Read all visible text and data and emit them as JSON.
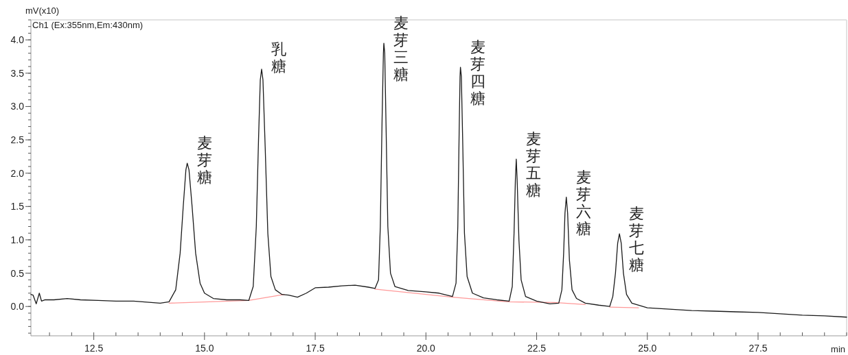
{
  "chart_data": {
    "type": "line",
    "title": "Ch1 (Ex:355nm,Em:430nm)",
    "ylabel": "mV(x10)",
    "xlabel": "min",
    "xlim": [
      11.08,
      29.5
    ],
    "ylim": [
      -0.44,
      4.3
    ],
    "xticks": [
      12.5,
      {
        "value": 15,
        "label": "15.0"
      },
      17.5,
      {
        "value": 20,
        "label": "20.0"
      },
      22.5,
      {
        "value": 25,
        "label": "25.0"
      },
      27.5
    ],
    "yticks": [
      {
        "value": 0,
        "label": "0.0"
      },
      0.5,
      {
        "value": 1,
        "label": "1.0"
      },
      1.5,
      {
        "value": 2,
        "label": "2.0"
      },
      2.5,
      {
        "value": 3,
        "label": "3.0"
      },
      3.5,
      {
        "value": 4,
        "label": "4.0"
      }
    ],
    "grid": false,
    "marker": "none",
    "line_style": "solid",
    "series": [
      {
        "color": "#ff9999",
        "x": [
          14.2,
          16.0,
          16.8
        ],
        "values": [
          0.05,
          0.09,
          0.18
        ]
      },
      {
        "color": "#ff9999",
        "x": [
          18.85,
          20.6,
          21.85,
          22.9,
          23.6
        ],
        "values": [
          0.26,
          0.14,
          0.07,
          0.06,
          0.03
        ]
      },
      {
        "color": "#ff9999",
        "x": [
          24.15,
          24.8
        ],
        "values": [
          -0.01,
          -0.02
        ]
      },
      {
        "color": "#1a1a1a",
        "x": [
          11.08,
          11.13,
          11.2,
          11.27,
          11.32,
          11.4,
          11.6,
          11.9,
          12.2,
          12.6,
          13.0,
          13.4,
          13.8,
          14.0,
          14.2,
          14.35,
          14.45,
          14.52,
          14.58,
          14.61,
          14.65,
          14.72,
          14.8,
          14.9,
          15.0,
          15.2,
          15.5,
          15.8,
          16.0,
          16.1,
          16.17,
          16.22,
          16.26,
          16.29,
          16.32,
          16.37,
          16.43,
          16.5,
          16.6,
          16.75,
          16.9,
          17.1,
          17.3,
          17.5,
          17.8,
          18.1,
          18.4,
          18.7,
          18.85,
          18.93,
          18.97,
          19.01,
          19.04,
          19.05,
          19.07,
          19.1,
          19.14,
          19.2,
          19.3,
          19.6,
          20.0,
          20.3,
          20.6,
          20.68,
          20.72,
          20.75,
          20.77,
          20.78,
          20.8,
          20.83,
          20.87,
          20.93,
          21.05,
          21.3,
          21.6,
          21.88,
          21.95,
          21.99,
          22.02,
          22.04,
          22.06,
          22.1,
          22.15,
          22.25,
          22.5,
          22.8,
          23.0,
          23.07,
          23.11,
          23.14,
          23.17,
          23.2,
          23.24,
          23.3,
          23.4,
          23.6,
          23.9,
          24.15,
          24.22,
          24.28,
          24.33,
          24.37,
          24.41,
          24.46,
          24.53,
          24.65,
          25.0,
          25.5,
          26.0,
          26.5,
          27.0,
          27.5,
          28.0,
          28.5,
          29.0,
          29.5
        ],
        "values": [
          0.18,
          0.17,
          0.04,
          0.2,
          0.08,
          0.1,
          0.1,
          0.12,
          0.1,
          0.09,
          0.08,
          0.08,
          0.06,
          0.05,
          0.07,
          0.25,
          0.8,
          1.5,
          2.05,
          2.15,
          2.05,
          1.5,
          0.8,
          0.35,
          0.2,
          0.12,
          0.1,
          0.1,
          0.09,
          0.3,
          1.2,
          2.5,
          3.4,
          3.56,
          3.4,
          2.4,
          1.1,
          0.45,
          0.25,
          0.18,
          0.17,
          0.14,
          0.2,
          0.28,
          0.29,
          0.31,
          0.32,
          0.29,
          0.27,
          0.4,
          1.2,
          2.8,
          3.8,
          3.95,
          3.8,
          2.7,
          1.2,
          0.5,
          0.3,
          0.24,
          0.22,
          0.2,
          0.15,
          0.35,
          1.2,
          2.6,
          3.45,
          3.59,
          3.45,
          2.5,
          1.1,
          0.45,
          0.2,
          0.13,
          0.1,
          0.08,
          0.3,
          1.1,
          1.9,
          2.21,
          1.9,
          1.0,
          0.4,
          0.15,
          0.08,
          0.04,
          0.05,
          0.25,
          0.8,
          1.4,
          1.64,
          1.4,
          0.7,
          0.25,
          0.12,
          0.05,
          0.02,
          0.0,
          0.15,
          0.5,
          0.95,
          1.09,
          0.95,
          0.5,
          0.18,
          0.05,
          -0.02,
          -0.04,
          -0.06,
          -0.07,
          -0.08,
          -0.09,
          -0.11,
          -0.13,
          -0.14,
          -0.16
        ]
      }
    ],
    "annotations": [
      {
        "text": "麦芽糖",
        "x": 14.61,
        "y": 2.15
      },
      {
        "text": "乳糖",
        "x": 16.29,
        "y": 3.56
      },
      {
        "text": "麦芽三糖",
        "x": 19.05,
        "y": 3.95
      },
      {
        "text": "麦芽四糖",
        "x": 20.78,
        "y": 3.59
      },
      {
        "text": "麦芽五糖",
        "x": 22.04,
        "y": 2.21
      },
      {
        "text": "麦芽六糖",
        "x": 23.17,
        "y": 1.64
      },
      {
        "text": "麦芽七糖",
        "x": 24.37,
        "y": 1.09
      }
    ]
  }
}
